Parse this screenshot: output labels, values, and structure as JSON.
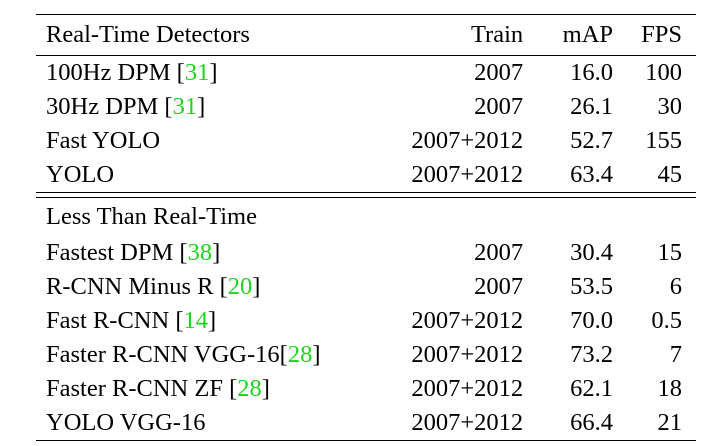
{
  "headers": {
    "name": "Real-Time Detectors",
    "train": "Train",
    "map": "mAP",
    "fps": "FPS"
  },
  "real_time_rows": [
    {
      "name": "100Hz DPM [",
      "ref": "31",
      "close": "]",
      "train": "2007",
      "map": "16.0",
      "fps": "100"
    },
    {
      "name": "30Hz DPM [",
      "ref": "31",
      "close": "]",
      "train": "2007",
      "map": "26.1",
      "fps": "30"
    },
    {
      "name": "Fast YOLO",
      "ref": "",
      "close": "",
      "train": "2007+2012",
      "map": "52.7",
      "fps": "155"
    },
    {
      "name": "YOLO",
      "ref": "",
      "close": "",
      "train": "2007+2012",
      "map": "63.4",
      "fps": "45"
    }
  ],
  "section_title": "Less Than Real-Time",
  "slow_rows": [
    {
      "name": "Fastest DPM [",
      "ref": "38",
      "close": "]",
      "train": "2007",
      "map": "30.4",
      "fps": "15"
    },
    {
      "name": "R-CNN Minus R [",
      "ref": "20",
      "close": "]",
      "train": "2007",
      "map": "53.5",
      "fps": "6"
    },
    {
      "name": "Fast R-CNN [",
      "ref": "14",
      "close": "]",
      "train": "2007+2012",
      "map": "70.0",
      "fps": "0.5"
    },
    {
      "name": "Faster R-CNN VGG-16[",
      "ref": "28",
      "close": "]",
      "train": "2007+2012",
      "map": "73.2",
      "fps": "7"
    },
    {
      "name": "Faster R-CNN ZF [",
      "ref": "28",
      "close": "]",
      "train": "2007+2012",
      "map": "62.1",
      "fps": "18"
    },
    {
      "name": "YOLO VGG-16",
      "ref": "",
      "close": "",
      "train": "2007+2012",
      "map": "66.4",
      "fps": "21"
    }
  ],
  "colors": {
    "reference": "#1dd31d",
    "text": "#000000"
  }
}
